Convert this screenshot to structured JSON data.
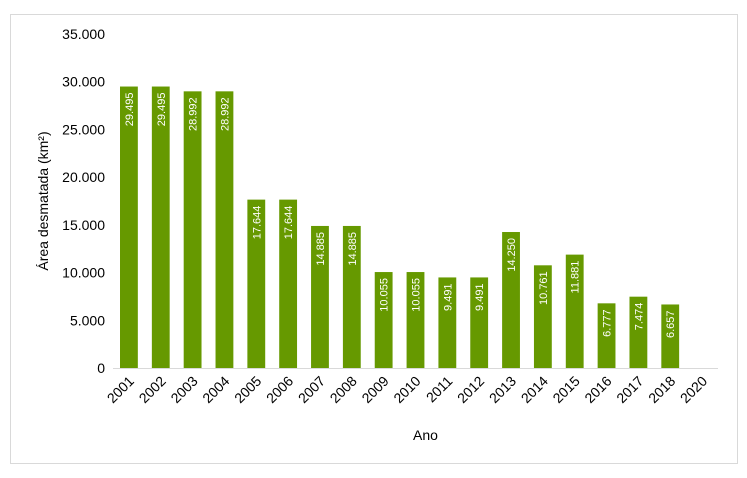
{
  "chart_data": {
    "type": "bar",
    "categories": [
      "2001",
      "2002",
      "2003",
      "2004",
      "2005",
      "2006",
      "2007",
      "2008",
      "2009",
      "2010",
      "2011",
      "2012",
      "2013",
      "2014",
      "2015",
      "2016",
      "2017",
      "2018",
      "2020"
    ],
    "values": [
      29495,
      29495,
      28992,
      28992,
      17644,
      17644,
      14885,
      14885,
      10055,
      10055,
      9491,
      9491,
      14250,
      10761,
      11881,
      6777,
      7474,
      6657,
      null
    ],
    "data_labels": [
      "29.495",
      "29.495",
      "28.992",
      "28.992",
      "17.644",
      "17.644",
      "14.885",
      "14.885",
      "10.055",
      "10.055",
      "9.491",
      "9.491",
      "14.250",
      "10.761",
      "11.881",
      "6.777",
      "7.474",
      "6.657",
      ""
    ],
    "title": "",
    "xlabel": "Ano",
    "ylabel": "Área desmatada (km²)",
    "ylim": [
      0,
      35000
    ],
    "yticks": [
      0,
      5000,
      10000,
      15000,
      20000,
      25000,
      30000,
      35000
    ],
    "ytick_labels": [
      "0",
      "5.000",
      "10.000",
      "15.000",
      "20.000",
      "25.000",
      "30.000",
      "35.000"
    ],
    "bar_color": "#669900",
    "grid": false,
    "legend": "none"
  }
}
